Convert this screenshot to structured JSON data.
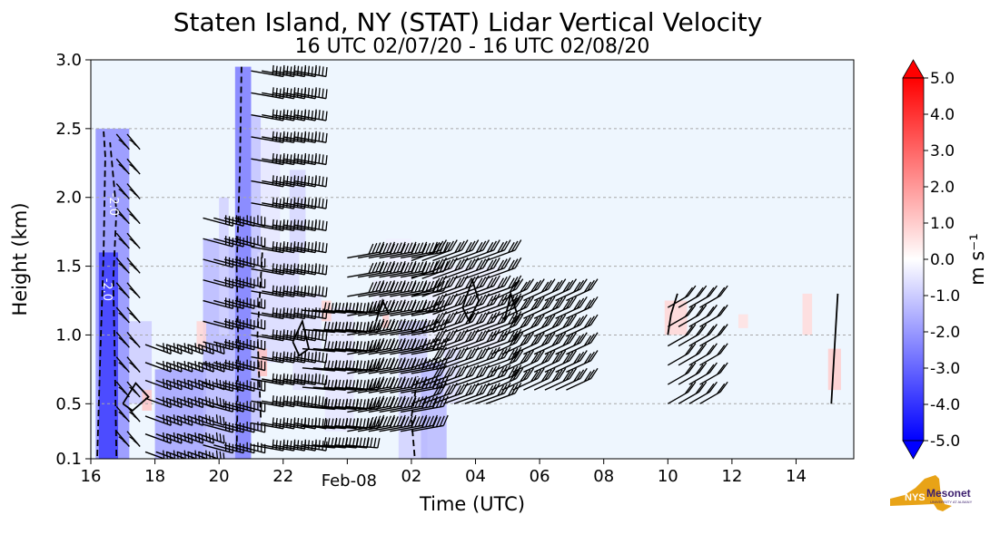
{
  "chart_data": {
    "type": "heatmap",
    "title": "Staten Island, NY (STAT) Lidar Vertical Velocity",
    "subtitle": "16 UTC 02/07/20 - 16 UTC 02/08/20",
    "xlabel": "Time (UTC)",
    "ylabel": "Height (km)",
    "x_range_hours": [
      16,
      39.8
    ],
    "x_ticks": [
      {
        "hour": 16,
        "label": "16"
      },
      {
        "hour": 18,
        "label": "18"
      },
      {
        "hour": 20,
        "label": "20"
      },
      {
        "hour": 22,
        "label": "22"
      },
      {
        "hour": 26,
        "label": "02"
      },
      {
        "hour": 28,
        "label": "04"
      },
      {
        "hour": 30,
        "label": "06"
      },
      {
        "hour": 32,
        "label": "08"
      },
      {
        "hour": 34,
        "label": "10"
      },
      {
        "hour": 36,
        "label": "12"
      },
      {
        "hour": 38,
        "label": "14"
      }
    ],
    "date_marker": {
      "hour": 24,
      "label": "Feb-08"
    },
    "ylim": [
      0.1,
      3.0
    ],
    "y_ticks": [
      0.1,
      0.5,
      1.0,
      1.5,
      2.0,
      2.5,
      3.0
    ],
    "y_tick_labels": [
      "0.1",
      "0.5",
      "1.0",
      "1.5",
      "2.0",
      "2.5",
      "3.0"
    ],
    "horizontal_grid_km": [
      0.5,
      1.0,
      1.5,
      2.0,
      2.5
    ],
    "grid": "horizontal dashed",
    "background_color": "#eef6fe",
    "colorbar": {
      "label": "m s⁻¹",
      "min": -5.0,
      "max": 5.0,
      "extend": "both",
      "tick_values": [
        5.0,
        4.0,
        3.0,
        2.0,
        1.0,
        0.0,
        -1.0,
        -2.0,
        -3.0,
        -4.0,
        -5.0
      ],
      "tick_labels": [
        "5.0",
        "4.0",
        "3.0",
        "2.0",
        "1.0",
        "0.0",
        "-1.0",
        "-2.0",
        "-3.0",
        "-4.0",
        "-5.0"
      ],
      "colors": {
        "low": "#0000ff",
        "mid": "#ffffff",
        "high": "#ff0000"
      }
    },
    "contour_labels": [
      {
        "hour": 16.6,
        "km": 1.95,
        "text": "-2.0"
      },
      {
        "hour": 16.4,
        "km": 1.33,
        "text": "-2.0"
      }
    ],
    "velocity_regions": [
      {
        "t0": 16.15,
        "t1": 17.2,
        "h0": 0.1,
        "h1": 2.5,
        "v": -2.2
      },
      {
        "t0": 16.25,
        "t1": 16.85,
        "h0": 0.1,
        "h1": 1.6,
        "v": -3.8
      },
      {
        "t0": 17.2,
        "t1": 17.9,
        "h0": 0.5,
        "h1": 1.1,
        "v": -1.0
      },
      {
        "t0": 18.0,
        "t1": 19.6,
        "h0": 0.1,
        "h1": 0.75,
        "v": -1.8
      },
      {
        "t0": 19.5,
        "t1": 20.5,
        "h0": 0.1,
        "h1": 1.7,
        "v": -1.4
      },
      {
        "t0": 20.0,
        "t1": 20.3,
        "h0": 1.0,
        "h1": 2.0,
        "v": -0.9
      },
      {
        "t0": 20.5,
        "t1": 21.0,
        "h0": 0.1,
        "h1": 2.95,
        "v": -2.6
      },
      {
        "t0": 21.0,
        "t1": 21.3,
        "h0": 0.3,
        "h1": 2.6,
        "v": -1.2
      },
      {
        "t0": 21.3,
        "t1": 21.9,
        "h0": 1.5,
        "h1": 2.5,
        "v": -0.5
      },
      {
        "t0": 21.2,
        "t1": 22.5,
        "h0": 0.8,
        "h1": 1.6,
        "v": -0.7
      },
      {
        "t0": 22.2,
        "t1": 22.7,
        "h0": 1.6,
        "h1": 2.2,
        "v": -0.8
      },
      {
        "t0": 22.3,
        "t1": 23.2,
        "h0": 0.6,
        "h1": 1.3,
        "v": -0.6
      },
      {
        "t0": 23.3,
        "t1": 24.2,
        "h0": 0.3,
        "h1": 1.2,
        "v": -0.5
      },
      {
        "t0": 24.8,
        "t1": 25.5,
        "h0": 1.2,
        "h1": 1.4,
        "v": -0.4
      },
      {
        "t0": 25.6,
        "t1": 26.5,
        "h0": 0.1,
        "h1": 1.1,
        "v": -0.9
      },
      {
        "t0": 26.3,
        "t1": 27.1,
        "h0": 0.1,
        "h1": 0.8,
        "v": -1.4
      },
      {
        "t0": 27.0,
        "t1": 27.5,
        "h0": 0.5,
        "h1": 0.9,
        "v": -0.6
      },
      {
        "t0": 26.5,
        "t1": 28.8,
        "h0": 0.9,
        "h1": 1.5,
        "v": -0.3
      },
      {
        "t0": 25.2,
        "t1": 26.0,
        "h0": 1.2,
        "h1": 1.7,
        "v": -0.3
      },
      {
        "t0": 19.3,
        "t1": 19.6,
        "h0": 0.9,
        "h1": 1.1,
        "v": 0.8
      },
      {
        "t0": 21.2,
        "t1": 21.5,
        "h0": 0.7,
        "h1": 0.9,
        "v": 1.2
      },
      {
        "t0": 23.2,
        "t1": 23.5,
        "h0": 1.1,
        "h1": 1.25,
        "v": 0.9
      },
      {
        "t0": 25.1,
        "t1": 25.3,
        "h0": 1.05,
        "h1": 1.15,
        "v": 1.0
      },
      {
        "t0": 33.9,
        "t1": 34.6,
        "h0": 1.0,
        "h1": 1.25,
        "v": 0.8
      },
      {
        "t0": 36.2,
        "t1": 36.5,
        "h0": 1.05,
        "h1": 1.15,
        "v": 0.6
      },
      {
        "t0": 38.2,
        "t1": 38.5,
        "h0": 1.0,
        "h1": 1.3,
        "v": 0.7
      },
      {
        "t0": 39.0,
        "t1": 39.4,
        "h0": 0.6,
        "h1": 0.9,
        "v": 1.0
      },
      {
        "t0": 17.6,
        "t1": 17.9,
        "h0": 0.45,
        "h1": 0.6,
        "v": 1.1
      }
    ],
    "contours": [
      {
        "style": "dashed",
        "points": [
          [
            16.2,
            0.12
          ],
          [
            16.3,
            0.9
          ],
          [
            16.4,
            1.6
          ],
          [
            16.45,
            2.3
          ],
          [
            16.4,
            2.48
          ]
        ]
      },
      {
        "style": "dashed",
        "points": [
          [
            16.8,
            0.12
          ],
          [
            16.75,
            0.8
          ],
          [
            16.7,
            1.4
          ],
          [
            16.8,
            1.9
          ],
          [
            16.6,
            2.4
          ]
        ]
      },
      {
        "style": "dashed",
        "points": [
          [
            20.55,
            0.15
          ],
          [
            20.6,
            0.9
          ],
          [
            20.55,
            1.5
          ],
          [
            20.65,
            2.2
          ],
          [
            20.7,
            2.95
          ]
        ]
      },
      {
        "style": "dashed",
        "points": [
          [
            21.3,
            0.4
          ],
          [
            21.2,
            1.0
          ],
          [
            21.35,
            1.6
          ]
        ]
      },
      {
        "style": "dashed",
        "points": [
          [
            26.1,
            0.12
          ],
          [
            26.0,
            0.4
          ],
          [
            26.2,
            0.7
          ]
        ]
      },
      {
        "style": "solid",
        "points": [
          [
            17.0,
            0.5
          ],
          [
            17.4,
            0.65
          ],
          [
            17.8,
            0.55
          ],
          [
            17.3,
            0.45
          ],
          [
            17.0,
            0.5
          ]
        ]
      },
      {
        "style": "solid",
        "points": [
          [
            22.3,
            0.95
          ],
          [
            22.6,
            1.1
          ],
          [
            22.8,
            0.9
          ],
          [
            22.5,
            0.85
          ],
          [
            22.3,
            0.95
          ]
        ]
      },
      {
        "style": "solid",
        "points": [
          [
            24.9,
            1.1
          ],
          [
            25.1,
            1.25
          ],
          [
            25.3,
            1.15
          ]
        ]
      },
      {
        "style": "solid",
        "points": [
          [
            27.6,
            1.2
          ],
          [
            27.9,
            1.4
          ],
          [
            28.1,
            1.25
          ],
          [
            27.8,
            1.1
          ],
          [
            27.6,
            1.2
          ]
        ]
      },
      {
        "style": "solid",
        "points": [
          [
            28.9,
            1.1
          ],
          [
            29.1,
            1.3
          ],
          [
            29.3,
            1.15
          ]
        ]
      },
      {
        "style": "solid",
        "points": [
          [
            39.1,
            0.5
          ],
          [
            39.2,
            0.9
          ],
          [
            39.3,
            1.3
          ]
        ]
      },
      {
        "style": "solid",
        "points": [
          [
            34.0,
            1.0
          ],
          [
            34.1,
            1.15
          ],
          [
            34.3,
            1.3
          ]
        ]
      }
    ],
    "wind_barb_groups": [
      {
        "t0": 16.8,
        "t1": 17.4,
        "h0": 0.3,
        "h1": 2.55,
        "step_km": 0.18,
        "len": 22,
        "angle": 230,
        "flags": 1,
        "full": 1
      },
      {
        "t0": 17.7,
        "t1": 19.5,
        "h0": 0.15,
        "h1": 1.0,
        "step_km": 0.13,
        "len": 30,
        "angle": 200,
        "flags": 0,
        "full": 3
      },
      {
        "t0": 19.5,
        "t1": 20.5,
        "h0": 0.2,
        "h1": 1.9,
        "step_km": 0.15,
        "len": 34,
        "angle": 195,
        "flags": 0,
        "full": 3
      },
      {
        "t0": 21.0,
        "t1": 22.5,
        "h0": 0.2,
        "h1": 2.95,
        "step_km": 0.16,
        "len": 36,
        "angle": 190,
        "flags": 0,
        "full": 4
      },
      {
        "t0": 22.6,
        "t1": 24.0,
        "h0": 0.2,
        "h1": 1.3,
        "step_km": 0.14,
        "len": 36,
        "angle": 185,
        "flags": 0,
        "full": 4
      },
      {
        "t0": 24.0,
        "t1": 26.0,
        "h0": 0.3,
        "h1": 1.6,
        "step_km": 0.14,
        "len": 36,
        "angle": 170,
        "flags": 0,
        "full": 4
      },
      {
        "t0": 26.0,
        "t1": 28.5,
        "h0": 0.5,
        "h1": 1.6,
        "step_km": 0.13,
        "len": 34,
        "angle": 160,
        "flags": 0,
        "full": 3
      },
      {
        "t0": 28.5,
        "t1": 31.0,
        "h0": 0.6,
        "h1": 1.3,
        "step_km": 0.13,
        "len": 30,
        "angle": 155,
        "flags": 0,
        "full": 3
      },
      {
        "t0": 34.0,
        "t1": 35.0,
        "h0": 0.5,
        "h1": 1.2,
        "step_km": 0.14,
        "len": 26,
        "angle": 150,
        "flags": 0,
        "full": 2
      }
    ]
  },
  "logo": {
    "text_main": "Mesonet",
    "text_badge": "NYS",
    "text_sub": "UNIVERSITY AT ALBANY",
    "accent": "#e8a317",
    "brand": "#3c1f6e"
  }
}
